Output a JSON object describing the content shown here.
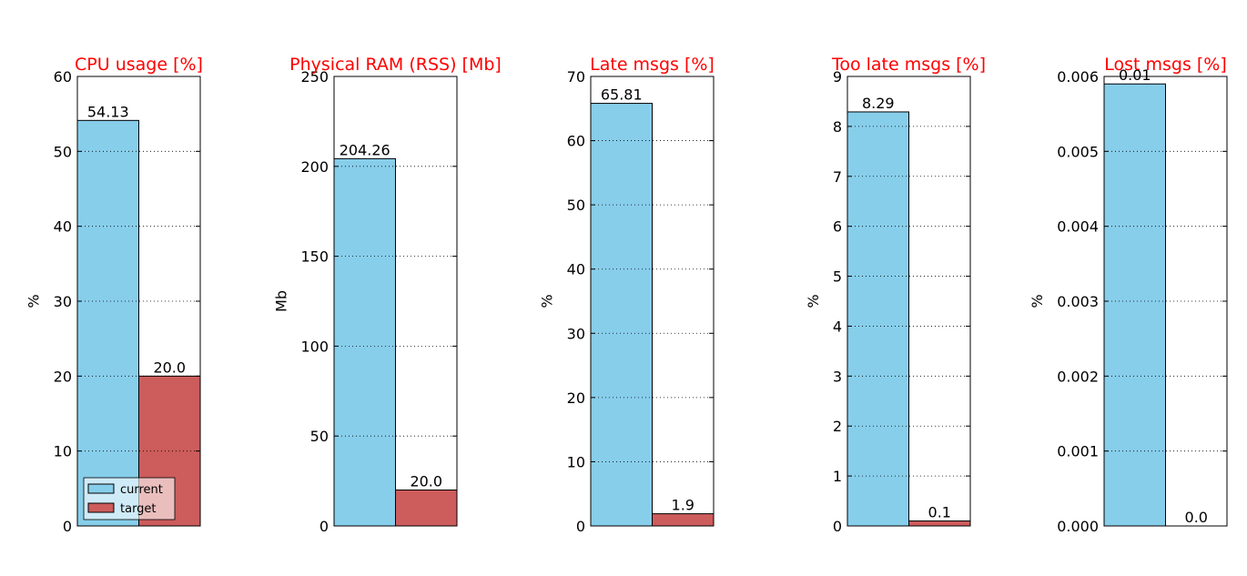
{
  "chart_data": [
    {
      "type": "bar",
      "title": "CPU usage [%]",
      "ylabel": "%",
      "ylim": [
        0,
        60
      ],
      "yticks": [
        0,
        10,
        20,
        30,
        40,
        50,
        60
      ],
      "grid": true,
      "legend": "lower left",
      "series": [
        {
          "name": "current",
          "color": "#87ceeb",
          "values": [
            54.13
          ]
        },
        {
          "name": "target",
          "color": "#cd5c5c",
          "values": [
            20
          ],
          "value_labels": [
            "20.0"
          ]
        }
      ]
    },
    {
      "type": "bar",
      "title": "Physical RAM (RSS) [Mb]",
      "ylabel": "Mb",
      "ylim": [
        0,
        250
      ],
      "yticks": [
        0,
        50,
        100,
        150,
        200,
        250
      ],
      "grid": true,
      "series": [
        {
          "color": "#87ceeb",
          "values": [
            204.26
          ]
        },
        {
          "color": "#cd5c5c",
          "values": [
            20
          ],
          "value_labels": [
            "20.0"
          ]
        }
      ]
    },
    {
      "type": "bar",
      "title": "Late msgs [%]",
      "ylabel": "%",
      "ylim": [
        0,
        70
      ],
      "yticks": [
        0,
        10,
        20,
        30,
        40,
        50,
        60,
        70
      ],
      "grid": true,
      "series": [
        {
          "color": "#87ceeb",
          "values": [
            65.81
          ]
        },
        {
          "color": "#cd5c5c",
          "values": [
            1.9
          ]
        }
      ]
    },
    {
      "type": "bar",
      "title": "Too late msgs [%]",
      "ylabel": "%",
      "ylim": [
        0,
        9
      ],
      "yticks": [
        0,
        1,
        2,
        3,
        4,
        5,
        6,
        7,
        8,
        9
      ],
      "grid": true,
      "series": [
        {
          "color": "#87ceeb",
          "values": [
            8.29
          ]
        },
        {
          "color": "#cd5c5c",
          "values": [
            0.1
          ]
        }
      ]
    },
    {
      "type": "bar",
      "title": "Lost msgs [%]",
      "ylabel": "%",
      "ylim": [
        0,
        0.006
      ],
      "yticks": [
        {
          "value": 0,
          "label": "0.000"
        },
        {
          "value": 0.001,
          "label": "0.001"
        },
        {
          "value": 0.002,
          "label": "0.002"
        },
        {
          "value": 0.003,
          "label": "0.003"
        },
        {
          "value": 0.004,
          "label": "0.004"
        },
        {
          "value": 0.005,
          "label": "0.005"
        },
        {
          "value": 0.006,
          "label": "0.006"
        }
      ],
      "grid": true,
      "series": [
        {
          "color": "#87ceeb",
          "values": [
            0.0059
          ],
          "value_labels": [
            "0.01"
          ]
        },
        {
          "color": "#cd5c5c",
          "values": [
            0
          ],
          "value_labels": [
            "0.0"
          ]
        }
      ]
    }
  ]
}
